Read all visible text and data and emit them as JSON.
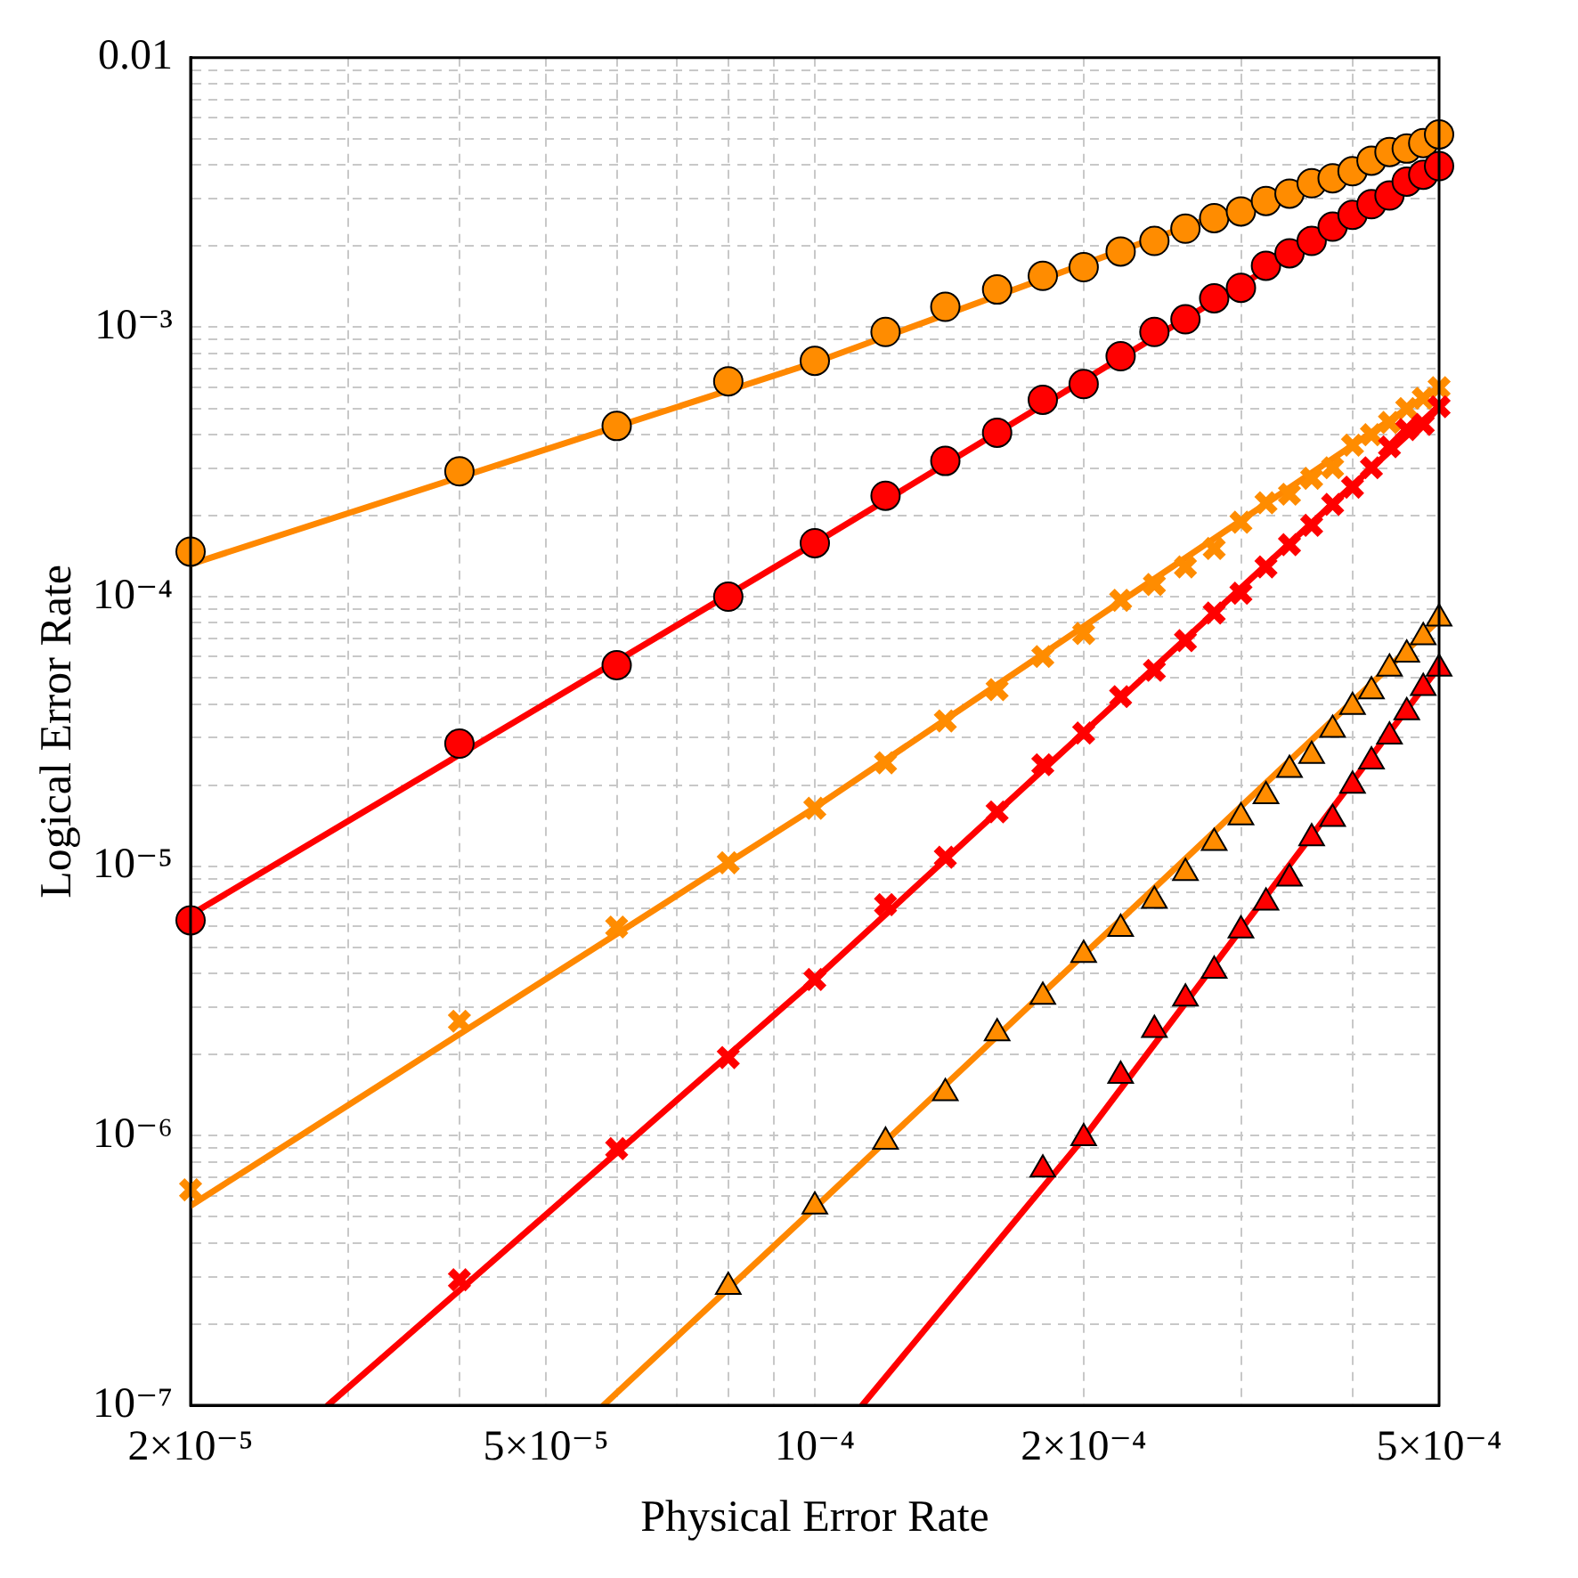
{
  "chart_data": {
    "type": "scatter",
    "xlabel": "Physical Error Rate",
    "ylabel": "Logical Error Rate",
    "log": "xy",
    "grid": true,
    "legend": false,
    "xlim": [
      2e-05,
      0.0005
    ],
    "ylim": [
      1e-07,
      0.01
    ],
    "xticks": [
      {
        "value": 2e-05,
        "label": "2×10⁻⁵"
      },
      {
        "value": 3e-05,
        "label": null
      },
      {
        "value": 4e-05,
        "label": null
      },
      {
        "value": 5e-05,
        "label": "5×10⁻⁵"
      },
      {
        "value": 6e-05,
        "label": null
      },
      {
        "value": 7e-05,
        "label": null
      },
      {
        "value": 8e-05,
        "label": null
      },
      {
        "value": 9e-05,
        "label": null
      },
      {
        "value": 0.0001,
        "label": "10⁻⁴"
      },
      {
        "value": 0.0002,
        "label": "2×10⁻⁴"
      },
      {
        "value": 0.0003,
        "label": null
      },
      {
        "value": 0.0004,
        "label": null
      },
      {
        "value": 0.0005,
        "label": "5×10⁻⁴"
      }
    ],
    "yticks": [
      {
        "value": 1e-07,
        "label": "10⁻⁷"
      },
      {
        "value": 2e-07,
        "label": null
      },
      {
        "value": 3e-07,
        "label": null
      },
      {
        "value": 4e-07,
        "label": null
      },
      {
        "value": 5e-07,
        "label": null
      },
      {
        "value": 6e-07,
        "label": null
      },
      {
        "value": 7e-07,
        "label": null
      },
      {
        "value": 8e-07,
        "label": null
      },
      {
        "value": 9e-07,
        "label": null
      },
      {
        "value": 1e-06,
        "label": "10⁻⁶"
      },
      {
        "value": 2e-06,
        "label": null
      },
      {
        "value": 3e-06,
        "label": null
      },
      {
        "value": 4e-06,
        "label": null
      },
      {
        "value": 5e-06,
        "label": null
      },
      {
        "value": 6e-06,
        "label": null
      },
      {
        "value": 7e-06,
        "label": null
      },
      {
        "value": 8e-06,
        "label": null
      },
      {
        "value": 9e-06,
        "label": null
      },
      {
        "value": 1e-05,
        "label": "10⁻⁵"
      },
      {
        "value": 2e-05,
        "label": null
      },
      {
        "value": 3e-05,
        "label": null
      },
      {
        "value": 4e-05,
        "label": null
      },
      {
        "value": 5e-05,
        "label": null
      },
      {
        "value": 6e-05,
        "label": null
      },
      {
        "value": 7e-05,
        "label": null
      },
      {
        "value": 8e-05,
        "label": null
      },
      {
        "value": 9e-05,
        "label": null
      },
      {
        "value": 0.0001,
        "label": "10⁻⁴"
      },
      {
        "value": 0.0002,
        "label": null
      },
      {
        "value": 0.0003,
        "label": null
      },
      {
        "value": 0.0004,
        "label": null
      },
      {
        "value": 0.0005,
        "label": null
      },
      {
        "value": 0.0006,
        "label": null
      },
      {
        "value": 0.0007,
        "label": null
      },
      {
        "value": 0.0008,
        "label": null
      },
      {
        "value": 0.0009,
        "label": null
      },
      {
        "value": 0.001,
        "label": "10⁻³"
      },
      {
        "value": 0.002,
        "label": null
      },
      {
        "value": 0.003,
        "label": null
      },
      {
        "value": 0.004,
        "label": null
      },
      {
        "value": 0.005,
        "label": null
      },
      {
        "value": 0.006,
        "label": null
      },
      {
        "value": 0.007,
        "label": null
      },
      {
        "value": 0.008,
        "label": null
      },
      {
        "value": 0.009,
        "label": null
      },
      0.01
    ],
    "x": [
      2e-05,
      4e-05,
      6e-05,
      8e-05,
      0.0001,
      0.00012,
      0.00014,
      0.00016,
      0.00018,
      0.0002,
      0.00022,
      0.00024,
      0.00026,
      0.00028,
      0.0003,
      0.00032,
      0.00034,
      0.00036,
      0.00038,
      0.0004,
      0.00042,
      0.00044,
      0.00046,
      0.00048,
      0.0005
    ],
    "series": [
      {
        "type": "line",
        "marker": "none",
        "color": "#ff8800",
        "x": [
          2e-05,
          0.0001,
          0.0005
        ],
        "values": [
          0.000132,
          0.00074,
          0.0052
        ]
      },
      {
        "type": "line",
        "marker": "none",
        "color": "#ff0000",
        "x": [
          2e-05,
          0.0001,
          0.0005
        ],
        "values": [
          6.6e-06,
          0.000158,
          0.004
        ]
      },
      {
        "type": "line",
        "marker": "none",
        "color": "#ff8800",
        "x": [
          2e-05,
          0.0001,
          0.0005
        ],
        "values": [
          5.5e-07,
          1.65e-05,
          0.0006
        ]
      },
      {
        "type": "line",
        "marker": "none",
        "color": "#ff0000",
        "x": [
          2.85e-05,
          0.0001,
          0.0005
        ],
        "values": [
          1e-07,
          3.8e-06,
          0.00051
        ]
      },
      {
        "type": "line",
        "marker": "none",
        "color": "#ff8800",
        "x": [
          5.8e-05,
          0.0001,
          0.0005
        ],
        "values": [
          1e-07,
          5.4e-07,
          8.2e-05
        ]
      },
      {
        "type": "line",
        "marker": "none",
        "color": "#ff0000",
        "x": [
          0.000113,
          0.0002,
          0.0005
        ],
        "values": [
          1e-07,
          9.8e-07,
          5.5e-05
        ]
      },
      {
        "marker": "circle",
        "color": "#ff8c00",
        "values": [
          0.000147,
          0.000292,
          0.00043,
          0.00063,
          0.00075,
          0.00096,
          0.00119,
          0.00138,
          0.00155,
          0.00167,
          0.00191,
          0.00209,
          0.00232,
          0.00254,
          0.00269,
          0.00294,
          0.00313,
          0.00342,
          0.00357,
          0.00379,
          0.00415,
          0.00447,
          0.0046,
          0.00482,
          0.00519
        ]
      },
      {
        "marker": "circle",
        "color": "#ff0000",
        "values": [
          6.3e-06,
          2.85e-05,
          5.57e-05,
          0.0001,
          0.000158,
          0.000237,
          0.000319,
          0.000406,
          0.000538,
          0.000615,
          0.00078,
          0.00096,
          0.00107,
          0.00128,
          0.0014,
          0.00169,
          0.00188,
          0.00209,
          0.00236,
          0.00261,
          0.00286,
          0.00308,
          0.00347,
          0.00368,
          0.00396
        ]
      },
      {
        "marker": "cross",
        "color": "#ff8c00",
        "values": [
          6.3e-07,
          2.66e-06,
          5.95e-06,
          1.03e-05,
          1.64e-05,
          2.42e-05,
          3.46e-05,
          4.52e-05,
          6e-05,
          7.3e-05,
          9.7e-05,
          0.000111,
          0.000129,
          0.000151,
          0.000189,
          0.000223,
          0.00024,
          0.000275,
          0.000301,
          0.000365,
          0.000399,
          0.000443,
          0.000499,
          0.000545,
          0.000597
        ]
      },
      {
        "marker": "cross",
        "color": "#ff0000",
        "values": [
          null,
          2.92e-07,
          8.95e-07,
          1.95e-06,
          3.8e-06,
          7.2e-06,
          1.08e-05,
          1.59e-05,
          2.38e-05,
          3.12e-05,
          4.26e-05,
          5.33e-05,
          6.87e-05,
          8.7e-05,
          0.000103,
          0.000129,
          0.000156,
          0.000184,
          0.00022,
          0.000255,
          0.000301,
          0.00036,
          0.000417,
          0.000436,
          0.000507
        ]
      },
      {
        "marker": "triangle",
        "color": "#ff8c00",
        "values": [
          null,
          null,
          null,
          2.75e-07,
          5.47e-07,
          9.5e-07,
          1.44e-06,
          2.4e-06,
          3.28e-06,
          4.69e-06,
          5.86e-06,
          7.45e-06,
          9.45e-06,
          1.22e-05,
          1.52e-05,
          1.82e-05,
          2.28e-05,
          2.57e-05,
          3.21e-05,
          3.9e-05,
          4.46e-05,
          5.41e-05,
          6.1e-05,
          7.08e-05,
          8.3e-05
        ]
      },
      {
        "marker": "triangle",
        "color": "#ff0000",
        "values": [
          null,
          null,
          null,
          null,
          null,
          null,
          null,
          null,
          7.5e-07,
          9.8e-07,
          1.67e-06,
          2.47e-06,
          3.23e-06,
          4.1e-06,
          5.78e-06,
          7.33e-06,
          9e-06,
          1.27e-05,
          1.5e-05,
          1.99e-05,
          2.45e-05,
          3.03e-05,
          3.73e-05,
          4.59e-05,
          5.41e-05
        ]
      }
    ]
  }
}
